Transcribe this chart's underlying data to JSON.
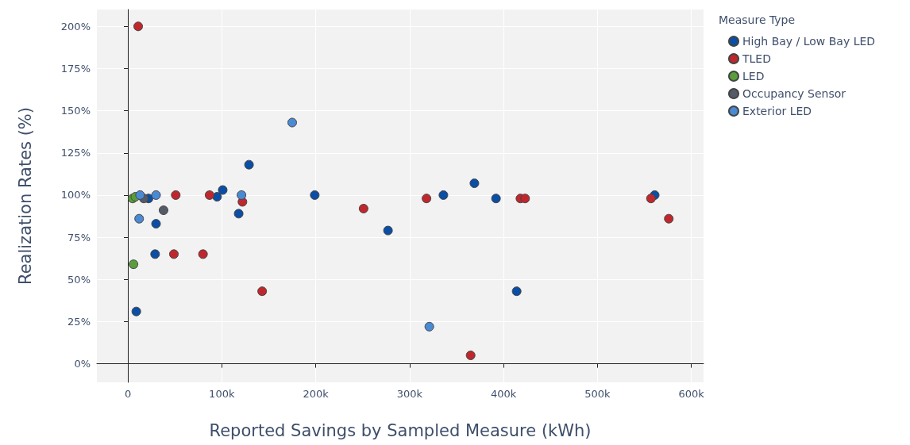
{
  "chart_data": {
    "type": "scatter",
    "xlabel": "Reported Savings by Sampled Measure (kWh)",
    "ylabel": "Realization Rates (%)",
    "legend_title": "Measure Type",
    "xlim": [
      -33000,
      613000
    ],
    "ylim": [
      -11,
      210
    ],
    "xticks": [
      {
        "value": 0,
        "label": "0"
      },
      {
        "value": 100000,
        "label": "100k"
      },
      {
        "value": 200000,
        "label": "200k"
      },
      {
        "value": 300000,
        "label": "300k"
      },
      {
        "value": 400000,
        "label": "400k"
      },
      {
        "value": 500000,
        "label": "500k"
      },
      {
        "value": 600000,
        "label": "600k"
      }
    ],
    "yticks": [
      {
        "value": 0,
        "label": "0%"
      },
      {
        "value": 25,
        "label": "25%"
      },
      {
        "value": 50,
        "label": "50%"
      },
      {
        "value": 75,
        "label": "75%"
      },
      {
        "value": 100,
        "label": "100%"
      },
      {
        "value": 125,
        "label": "125%"
      },
      {
        "value": 150,
        "label": "150%"
      },
      {
        "value": 175,
        "label": "175%"
      },
      {
        "value": 200,
        "label": "200%"
      }
    ],
    "grid": true,
    "legend": "top right",
    "marker": "circle",
    "series": [
      {
        "name": "High Bay / Low Bay LED",
        "color": "#0a4ea6",
        "x": [
          9000,
          22000,
          30000,
          29000,
          95000,
          101000,
          129000,
          118000,
          199000,
          277000,
          336000,
          369000,
          392000,
          414000,
          561000
        ],
        "values": [
          31,
          98,
          83,
          65,
          99,
          103,
          118,
          89,
          100,
          79,
          100,
          107,
          98,
          43,
          100
        ]
      },
      {
        "name": "TLED",
        "color": "#c0272d",
        "x": [
          11000,
          51000,
          49000,
          87000,
          80000,
          122000,
          143000,
          251000,
          318000,
          365000,
          418000,
          423000,
          557000,
          576000
        ],
        "values": [
          200,
          100,
          65,
          100,
          65,
          96,
          43,
          92,
          98,
          5,
          98,
          98,
          98,
          86
        ]
      },
      {
        "name": "LED",
        "color": "#5a9e3c",
        "x": [
          5000,
          8000,
          6000
        ],
        "values": [
          98,
          99,
          59
        ]
      },
      {
        "name": "Occupancy Sensor",
        "color": "#545b66",
        "x": [
          17000,
          38000
        ],
        "values": [
          98,
          91
        ]
      },
      {
        "name": "Exterior LED",
        "color": "#4a8ad4",
        "x": [
          13000,
          12000,
          30000,
          121000,
          175000,
          321000
        ],
        "values": [
          100,
          86,
          100,
          100,
          143,
          22
        ]
      }
    ]
  }
}
